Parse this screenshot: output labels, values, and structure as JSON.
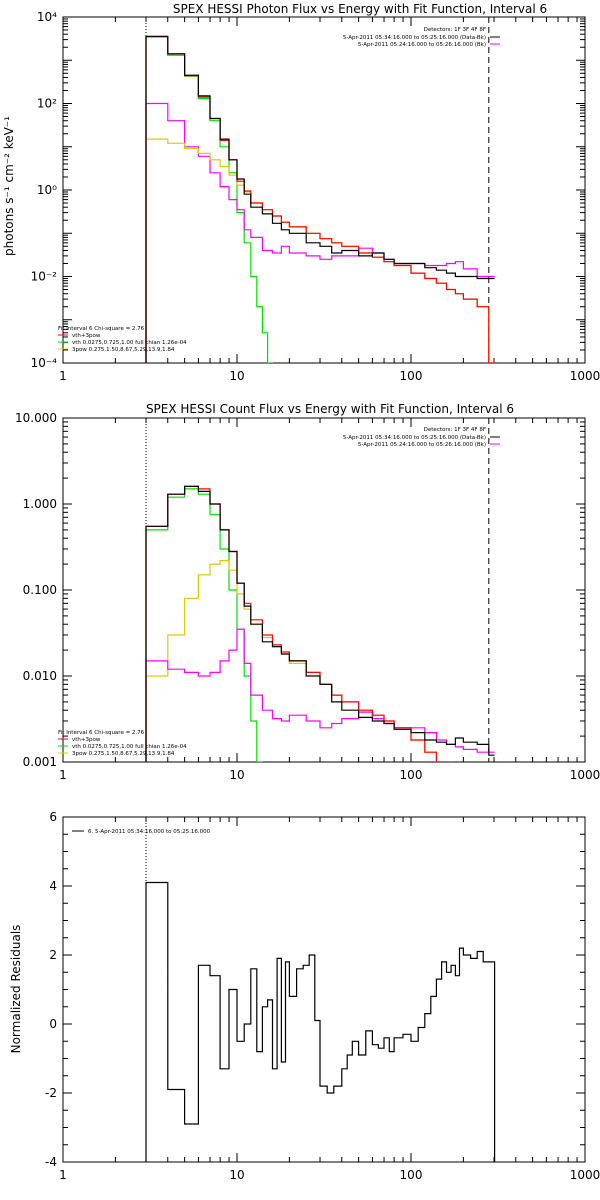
{
  "colors": {
    "total": "#000000",
    "vth_plus_3pow": "#ff0000",
    "vth": "#00e000",
    "3pow": "#e0c800",
    "background": "#ff00ff",
    "boundary": "#000000"
  },
  "chart_data": [
    {
      "type": "line",
      "title": "SPEX HESSI Photon Flux vs Energy with Fit Function, Interval 6",
      "ylabel": "photons s⁻¹ cm⁻² keV⁻¹",
      "xlabel": "",
      "xscale": "log",
      "yscale": "log",
      "xlim": [
        1,
        1000
      ],
      "ylim": [
        0.0001,
        10000
      ],
      "xticks": [
        "1",
        "10",
        "100",
        "1000"
      ],
      "yticks": [
        "10⁻⁴",
        "10⁻²",
        "10⁰",
        "10²",
        "10⁴"
      ],
      "grid": false,
      "legend_position": "top-right",
      "legend_header": "Detectors: 1F 3F 4F 8F",
      "legend_entries": [
        "5-Apr-2011 05:34:16.000 to 05:25:16.000 (Data-Bk)",
        "5-Apr-2011 05:24:16.000 to 05:26:16.000 (Bk)"
      ],
      "fit_label": "Fit Interval 6    Chi-square = 2.76",
      "fit_entries": [
        "vth+3pow",
        "vth 0.0275,0.725,1.00  full chian 1.26e-04",
        "3pow 0.275,1.50,8.67,5.29,13.9,1.84"
      ],
      "energy_range": [
        3,
        280
      ],
      "series": [
        {
          "key": "vth",
          "style": "vth",
          "x": [
            3,
            4,
            5,
            6,
            7,
            8,
            9,
            10,
            11,
            12,
            13,
            14,
            15
          ],
          "y": [
            3500,
            1300,
            430,
            130,
            40,
            10,
            2.5,
            0.3,
            0.06,
            0.01,
            0.002,
            0.0005,
            0.0001
          ]
        },
        {
          "key": "background",
          "style": "background",
          "x": [
            3,
            4,
            5,
            6,
            7,
            8,
            9,
            10,
            11,
            12,
            14,
            16,
            18,
            20,
            25,
            30,
            35,
            40,
            50,
            60,
            70,
            80,
            100,
            120,
            140,
            160,
            180,
            200,
            240,
            280
          ],
          "y": [
            100,
            40,
            10,
            6,
            2.5,
            1.2,
            0.6,
            0.35,
            0.12,
            0.08,
            0.04,
            0.035,
            0.05,
            0.035,
            0.03,
            0.025,
            0.03,
            0.03,
            0.045,
            0.035,
            0.025,
            0.02,
            0.02,
            0.018,
            0.018,
            0.02,
            0.022,
            0.015,
            0.01,
            0.01
          ]
        },
        {
          "key": "3pow",
          "style": "3pow",
          "x": [
            3,
            4,
            5,
            6,
            7,
            8,
            9,
            10,
            11,
            12,
            14,
            16,
            18,
            20,
            25,
            30,
            35,
            40,
            50,
            60,
            70,
            80,
            100,
            120,
            140,
            160,
            180,
            200,
            240,
            280
          ],
          "y": [
            15,
            12,
            9,
            7,
            5,
            3.5,
            2.2,
            1.3,
            0.9,
            0.5,
            0.35,
            0.25,
            0.18,
            0.14,
            0.1,
            0.075,
            0.06,
            0.05,
            0.035,
            0.028,
            0.022,
            0.018,
            0.012,
            0.009,
            0.007,
            0.005,
            0.004,
            0.003,
            0.002,
            0.0001
          ]
        },
        {
          "key": "vth_plus_3pow",
          "style": "vth_plus_3pow",
          "x": [
            3,
            4,
            5,
            6,
            7,
            8,
            9,
            10,
            11,
            12,
            14,
            16,
            18,
            20,
            25,
            30,
            35,
            40,
            50,
            60,
            70,
            80,
            100,
            120,
            140,
            160,
            180,
            200,
            240,
            280
          ],
          "y": [
            3600,
            1400,
            440,
            140,
            45,
            14,
            5,
            1.6,
            0.95,
            0.5,
            0.35,
            0.25,
            0.18,
            0.14,
            0.1,
            0.075,
            0.06,
            0.05,
            0.035,
            0.028,
            0.022,
            0.018,
            0.012,
            0.009,
            0.007,
            0.005,
            0.004,
            0.003,
            0.002,
            0.0001
          ]
        },
        {
          "key": "total",
          "style": "total",
          "x": [
            3,
            4,
            5,
            6,
            7,
            8,
            9,
            10,
            11,
            12,
            14,
            16,
            18,
            20,
            25,
            30,
            35,
            40,
            50,
            60,
            70,
            80,
            100,
            120,
            140,
            160,
            180,
            200,
            240,
            280
          ],
          "y": [
            3500,
            1400,
            450,
            150,
            45,
            15,
            5,
            1.8,
            0.8,
            0.4,
            0.28,
            0.17,
            0.12,
            0.1,
            0.06,
            0.05,
            0.035,
            0.04,
            0.03,
            0.035,
            0.025,
            0.02,
            0.02,
            0.016,
            0.014,
            0.012,
            0.01,
            0.01,
            0.009,
            0.009
          ]
        }
      ]
    },
    {
      "type": "line",
      "title": "SPEX HESSI Count Flux vs Energy with Fit Function, Interval 6",
      "ylabel": "",
      "xlabel": "",
      "xscale": "log",
      "yscale": "log",
      "xlim": [
        1,
        1000
      ],
      "ylim": [
        0.001,
        10
      ],
      "xticks": [
        "1",
        "10",
        "100",
        "1000"
      ],
      "yticks": [
        "0.001",
        "0.010",
        "0.100",
        "1.000",
        "10.000"
      ],
      "grid": false,
      "legend_position": "top-right",
      "legend_header": "Detectors: 1F 3F 4F 8F",
      "legend_entries": [
        "5-Apr-2011 05:34:16.000 to 05:25:16.000 (Data-Bk)",
        "5-Apr-2011 05:24:16.000 to 05:26:16.000 (Bk)"
      ],
      "fit_label": "Fit Interval 6    Chi-square = 2.76",
      "fit_entries": [
        "vth+3pow",
        "vth 0.0275,0.725,1.00  full chian 1.26e-04",
        "3pow 0.275,1.50,8.67,5.29,13.9,1.84"
      ],
      "energy_range": [
        3,
        280
      ],
      "series": [
        {
          "key": "vth",
          "style": "vth",
          "x": [
            3,
            4,
            5,
            6,
            7,
            8,
            9,
            10,
            11,
            12,
            13
          ],
          "y": [
            0.5,
            1.2,
            1.5,
            1.3,
            0.75,
            0.3,
            0.1,
            0.035,
            0.01,
            0.003,
            0.001
          ]
        },
        {
          "key": "3pow",
          "style": "3pow",
          "x": [
            3,
            4,
            5,
            6,
            7,
            8,
            9,
            10,
            11,
            12,
            14,
            16,
            18,
            20,
            25,
            30,
            35,
            40,
            50,
            60,
            70,
            80,
            100,
            120,
            140,
            160
          ],
          "y": [
            0.01,
            0.03,
            0.08,
            0.15,
            0.2,
            0.22,
            0.17,
            0.09,
            0.06,
            0.04,
            0.028,
            0.022,
            0.018,
            0.014,
            0.011,
            0.008,
            0.006,
            0.005,
            0.004,
            0.0035,
            0.003,
            0.0025,
            0.0018,
            0.0013,
            0.001,
            0.001
          ]
        },
        {
          "key": "background",
          "style": "background",
          "x": [
            3,
            4,
            5,
            6,
            7,
            8,
            9,
            10,
            11,
            12,
            14,
            16,
            18,
            20,
            25,
            30,
            35,
            40,
            50,
            60,
            70,
            80,
            100,
            120,
            140,
            160,
            180,
            200,
            240,
            280
          ],
          "y": [
            0.015,
            0.012,
            0.011,
            0.01,
            0.011,
            0.015,
            0.02,
            0.035,
            0.014,
            0.006,
            0.004,
            0.0032,
            0.003,
            0.0035,
            0.003,
            0.0025,
            0.0028,
            0.0032,
            0.0038,
            0.0032,
            0.0028,
            0.0025,
            0.0025,
            0.0022,
            0.0018,
            0.0016,
            0.0015,
            0.0014,
            0.0013,
            0.0013
          ]
        },
        {
          "key": "vth_plus_3pow",
          "style": "vth_plus_3pow",
          "x": [
            3,
            4,
            5,
            6,
            7,
            8,
            9,
            10,
            11,
            12,
            14,
            16,
            18,
            20,
            25,
            30,
            35,
            40,
            50,
            60,
            70,
            80,
            100,
            120,
            140,
            160
          ],
          "y": [
            0.55,
            1.3,
            1.6,
            1.5,
            1.0,
            0.5,
            0.28,
            0.12,
            0.07,
            0.045,
            0.03,
            0.023,
            0.019,
            0.015,
            0.011,
            0.008,
            0.006,
            0.005,
            0.004,
            0.0035,
            0.003,
            0.0025,
            0.0018,
            0.0013,
            0.001,
            0.001
          ]
        },
        {
          "key": "total",
          "style": "total",
          "x": [
            3,
            4,
            5,
            6,
            7,
            8,
            9,
            10,
            11,
            12,
            14,
            16,
            18,
            20,
            25,
            30,
            35,
            40,
            50,
            60,
            70,
            80,
            100,
            120,
            140,
            160,
            180,
            200,
            240,
            280
          ],
          "y": [
            0.55,
            1.3,
            1.6,
            1.4,
            1.0,
            0.5,
            0.28,
            0.12,
            0.065,
            0.04,
            0.025,
            0.022,
            0.018,
            0.015,
            0.01,
            0.008,
            0.005,
            0.004,
            0.0033,
            0.003,
            0.0028,
            0.0024,
            0.0022,
            0.0018,
            0.0017,
            0.0016,
            0.0019,
            0.0017,
            0.0016,
            0.0012
          ]
        }
      ]
    },
    {
      "type": "line",
      "title": "",
      "ylabel": "Normalized Residuals",
      "xlabel": "",
      "xscale": "log",
      "yscale": "linear",
      "xlim": [
        1,
        1000
      ],
      "ylim": [
        -4,
        6
      ],
      "xticks": [
        "1",
        "10",
        "100",
        "1000"
      ],
      "yticks": [
        "-4",
        "-2",
        "0",
        "2",
        "4",
        "6"
      ],
      "grid": false,
      "legend_position": "top-left",
      "legend_entries": [
        "6. 5-Apr-2011 05:34:16.000 to 05:25:16.000"
      ],
      "energy_range": [
        3,
        280
      ],
      "series": [
        {
          "key": "residuals",
          "style": "total",
          "x": [
            3,
            4,
            4.5,
            5,
            6,
            7,
            8,
            9,
            10,
            11,
            12,
            13,
            14,
            15,
            16,
            17,
            18,
            19,
            20,
            22,
            24,
            26,
            28,
            30,
            33,
            36,
            40,
            43,
            46,
            50,
            55,
            60,
            65,
            70,
            75,
            80,
            90,
            100,
            110,
            120,
            130,
            140,
            150,
            160,
            170,
            180,
            190,
            200,
            220,
            240,
            260,
            280
          ],
          "y": [
            4.1,
            -1.9,
            -1.9,
            -2.9,
            1.7,
            1.4,
            -1.3,
            1.0,
            -0.5,
            0.0,
            1.6,
            -0.8,
            0.5,
            0.7,
            -1.3,
            1.9,
            -1.1,
            1.8,
            0.8,
            1.6,
            1.7,
            2.0,
            0.1,
            -1.8,
            -2.0,
            -1.8,
            -1.3,
            -0.9,
            -0.5,
            -0.9,
            -0.2,
            -0.6,
            -0.7,
            -0.4,
            -0.8,
            -0.4,
            -0.3,
            -0.5,
            -0.1,
            0.3,
            0.8,
            1.3,
            1.8,
            1.5,
            1.7,
            1.4,
            2.2,
            2.0,
            1.9,
            2.1,
            1.8,
            1.8
          ]
        }
      ]
    }
  ]
}
